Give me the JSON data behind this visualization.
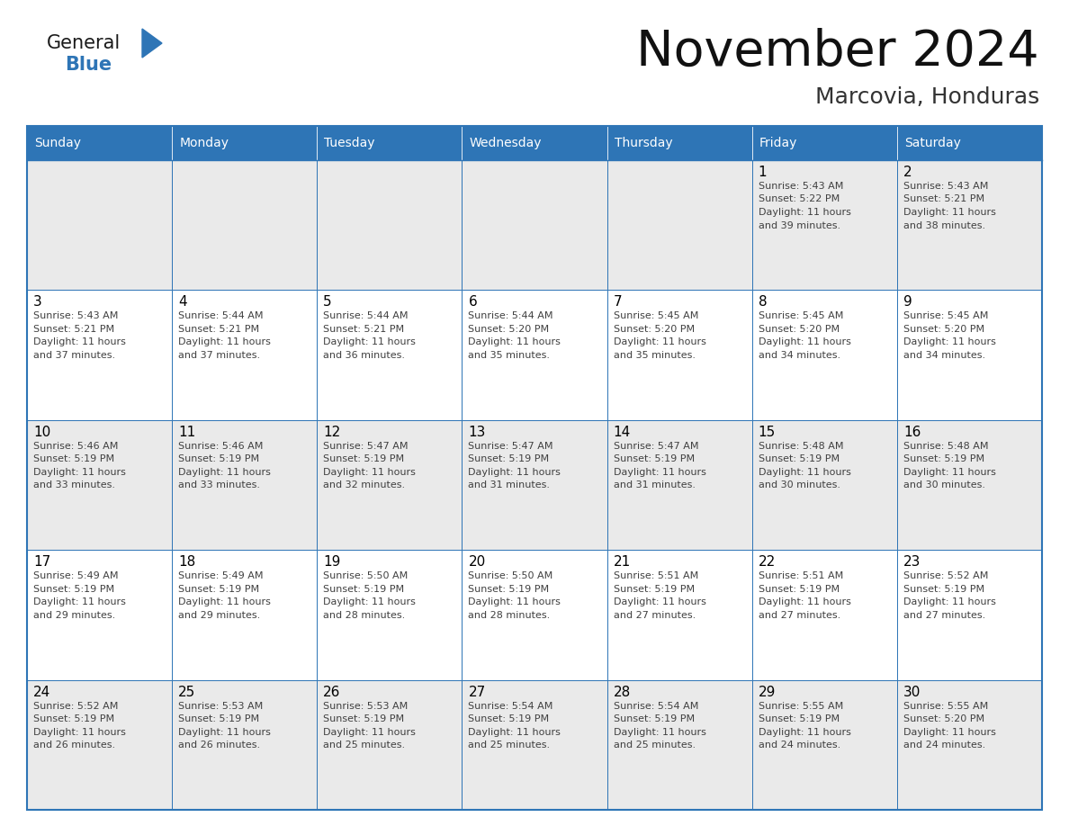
{
  "title": "November 2024",
  "subtitle": "Marcovia, Honduras",
  "days_of_week": [
    "Sunday",
    "Monday",
    "Tuesday",
    "Wednesday",
    "Thursday",
    "Friday",
    "Saturday"
  ],
  "header_bg": "#2E75B6",
  "header_text": "#FFFFFF",
  "cell_bg_light": "#EAEAEA",
  "cell_bg_white": "#FFFFFF",
  "border_color": "#2E75B6",
  "day_num_color": "#000000",
  "cell_text_color": "#404040",
  "title_color": "#111111",
  "subtitle_color": "#333333",
  "general_color": "#111111",
  "blue_color": "#2E75B6",
  "weeks": [
    [
      null,
      null,
      null,
      null,
      null,
      1,
      2
    ],
    [
      3,
      4,
      5,
      6,
      7,
      8,
      9
    ],
    [
      10,
      11,
      12,
      13,
      14,
      15,
      16
    ],
    [
      17,
      18,
      19,
      20,
      21,
      22,
      23
    ],
    [
      24,
      25,
      26,
      27,
      28,
      29,
      30
    ]
  ],
  "cell_data": {
    "1": {
      "sunrise": "5:43 AM",
      "sunset": "5:22 PM",
      "daylight_l1": "Daylight: 11 hours",
      "daylight_l2": "and 39 minutes."
    },
    "2": {
      "sunrise": "5:43 AM",
      "sunset": "5:21 PM",
      "daylight_l1": "Daylight: 11 hours",
      "daylight_l2": "and 38 minutes."
    },
    "3": {
      "sunrise": "5:43 AM",
      "sunset": "5:21 PM",
      "daylight_l1": "Daylight: 11 hours",
      "daylight_l2": "and 37 minutes."
    },
    "4": {
      "sunrise": "5:44 AM",
      "sunset": "5:21 PM",
      "daylight_l1": "Daylight: 11 hours",
      "daylight_l2": "and 37 minutes."
    },
    "5": {
      "sunrise": "5:44 AM",
      "sunset": "5:21 PM",
      "daylight_l1": "Daylight: 11 hours",
      "daylight_l2": "and 36 minutes."
    },
    "6": {
      "sunrise": "5:44 AM",
      "sunset": "5:20 PM",
      "daylight_l1": "Daylight: 11 hours",
      "daylight_l2": "and 35 minutes."
    },
    "7": {
      "sunrise": "5:45 AM",
      "sunset": "5:20 PM",
      "daylight_l1": "Daylight: 11 hours",
      "daylight_l2": "and 35 minutes."
    },
    "8": {
      "sunrise": "5:45 AM",
      "sunset": "5:20 PM",
      "daylight_l1": "Daylight: 11 hours",
      "daylight_l2": "and 34 minutes."
    },
    "9": {
      "sunrise": "5:45 AM",
      "sunset": "5:20 PM",
      "daylight_l1": "Daylight: 11 hours",
      "daylight_l2": "and 34 minutes."
    },
    "10": {
      "sunrise": "5:46 AM",
      "sunset": "5:19 PM",
      "daylight_l1": "Daylight: 11 hours",
      "daylight_l2": "and 33 minutes."
    },
    "11": {
      "sunrise": "5:46 AM",
      "sunset": "5:19 PM",
      "daylight_l1": "Daylight: 11 hours",
      "daylight_l2": "and 33 minutes."
    },
    "12": {
      "sunrise": "5:47 AM",
      "sunset": "5:19 PM",
      "daylight_l1": "Daylight: 11 hours",
      "daylight_l2": "and 32 minutes."
    },
    "13": {
      "sunrise": "5:47 AM",
      "sunset": "5:19 PM",
      "daylight_l1": "Daylight: 11 hours",
      "daylight_l2": "and 31 minutes."
    },
    "14": {
      "sunrise": "5:47 AM",
      "sunset": "5:19 PM",
      "daylight_l1": "Daylight: 11 hours",
      "daylight_l2": "and 31 minutes."
    },
    "15": {
      "sunrise": "5:48 AM",
      "sunset": "5:19 PM",
      "daylight_l1": "Daylight: 11 hours",
      "daylight_l2": "and 30 minutes."
    },
    "16": {
      "sunrise": "5:48 AM",
      "sunset": "5:19 PM",
      "daylight_l1": "Daylight: 11 hours",
      "daylight_l2": "and 30 minutes."
    },
    "17": {
      "sunrise": "5:49 AM",
      "sunset": "5:19 PM",
      "daylight_l1": "Daylight: 11 hours",
      "daylight_l2": "and 29 minutes."
    },
    "18": {
      "sunrise": "5:49 AM",
      "sunset": "5:19 PM",
      "daylight_l1": "Daylight: 11 hours",
      "daylight_l2": "and 29 minutes."
    },
    "19": {
      "sunrise": "5:50 AM",
      "sunset": "5:19 PM",
      "daylight_l1": "Daylight: 11 hours",
      "daylight_l2": "and 28 minutes."
    },
    "20": {
      "sunrise": "5:50 AM",
      "sunset": "5:19 PM",
      "daylight_l1": "Daylight: 11 hours",
      "daylight_l2": "and 28 minutes."
    },
    "21": {
      "sunrise": "5:51 AM",
      "sunset": "5:19 PM",
      "daylight_l1": "Daylight: 11 hours",
      "daylight_l2": "and 27 minutes."
    },
    "22": {
      "sunrise": "5:51 AM",
      "sunset": "5:19 PM",
      "daylight_l1": "Daylight: 11 hours",
      "daylight_l2": "and 27 minutes."
    },
    "23": {
      "sunrise": "5:52 AM",
      "sunset": "5:19 PM",
      "daylight_l1": "Daylight: 11 hours",
      "daylight_l2": "and 27 minutes."
    },
    "24": {
      "sunrise": "5:52 AM",
      "sunset": "5:19 PM",
      "daylight_l1": "Daylight: 11 hours",
      "daylight_l2": "and 26 minutes."
    },
    "25": {
      "sunrise": "5:53 AM",
      "sunset": "5:19 PM",
      "daylight_l1": "Daylight: 11 hours",
      "daylight_l2": "and 26 minutes."
    },
    "26": {
      "sunrise": "5:53 AM",
      "sunset": "5:19 PM",
      "daylight_l1": "Daylight: 11 hours",
      "daylight_l2": "and 25 minutes."
    },
    "27": {
      "sunrise": "5:54 AM",
      "sunset": "5:19 PM",
      "daylight_l1": "Daylight: 11 hours",
      "daylight_l2": "and 25 minutes."
    },
    "28": {
      "sunrise": "5:54 AM",
      "sunset": "5:19 PM",
      "daylight_l1": "Daylight: 11 hours",
      "daylight_l2": "and 25 minutes."
    },
    "29": {
      "sunrise": "5:55 AM",
      "sunset": "5:19 PM",
      "daylight_l1": "Daylight: 11 hours",
      "daylight_l2": "and 24 minutes."
    },
    "30": {
      "sunrise": "5:55 AM",
      "sunset": "5:20 PM",
      "daylight_l1": "Daylight: 11 hours",
      "daylight_l2": "and 24 minutes."
    }
  }
}
